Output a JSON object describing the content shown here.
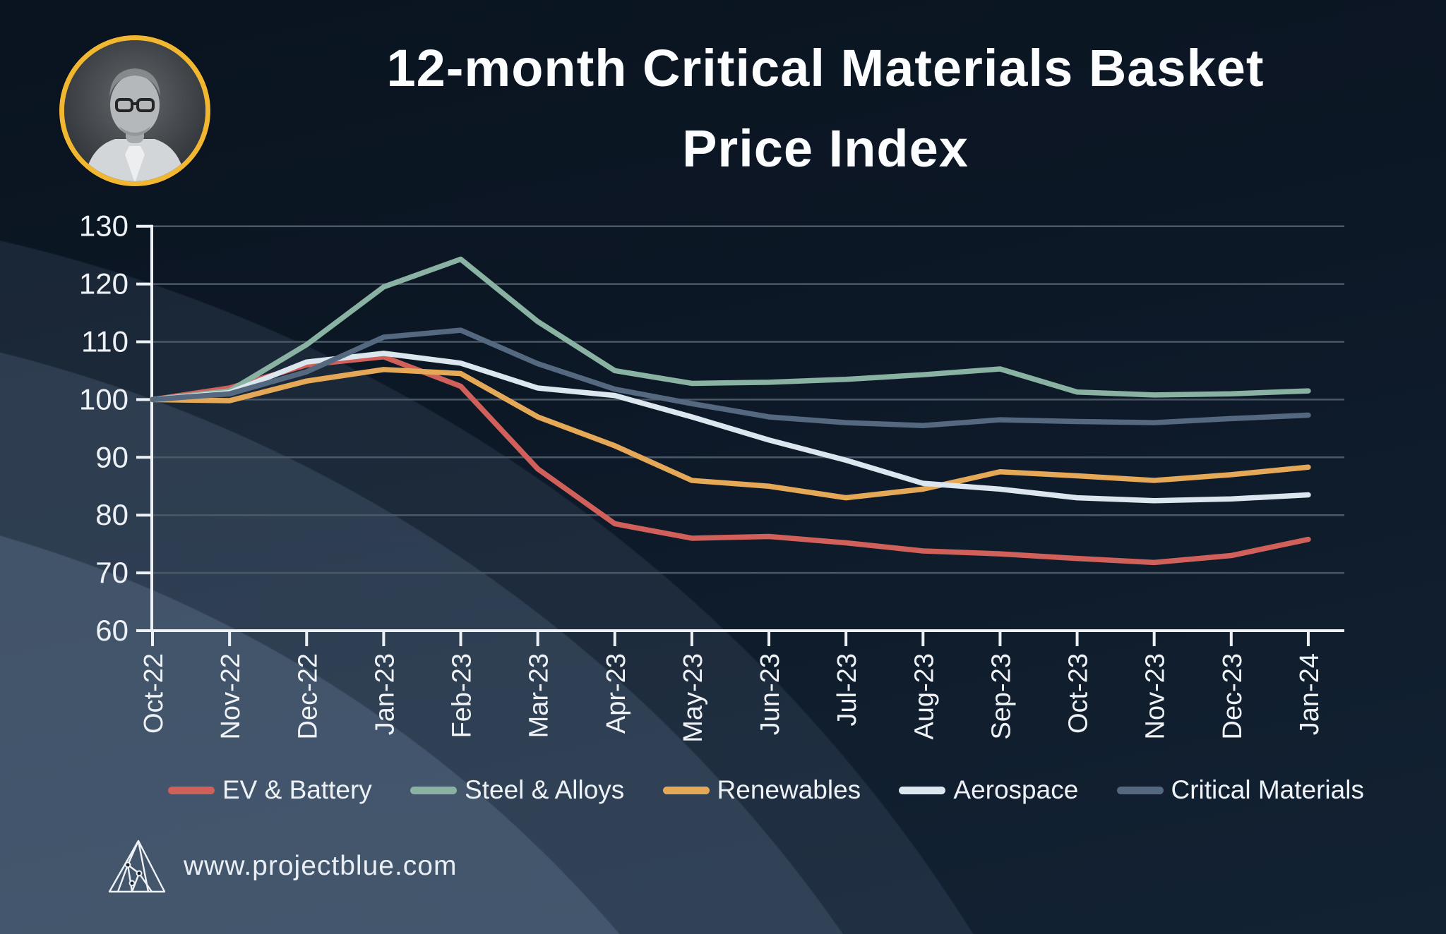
{
  "slide": {
    "title_line1": "12-month Critical Materials Basket",
    "title_line2": "Price Index",
    "website": "www.projectblue.com"
  },
  "colors": {
    "axis": "#edf1f5",
    "gridline": "#4b5866",
    "tick_label": "#eef2f6",
    "accent_gold": "#f2b731",
    "background_dark": "#0b1522",
    "swoosh_slate": "#60758f"
  },
  "chart_data": {
    "type": "line",
    "title": "12-month Critical Materials Basket Price Index",
    "xlabel": "",
    "ylabel": "",
    "ylim": [
      60,
      130
    ],
    "yticks": [
      60,
      70,
      80,
      90,
      100,
      110,
      120,
      130
    ],
    "grid": true,
    "legend_position": "bottom",
    "categories": [
      "Oct-22",
      "Nov-22",
      "Dec-22",
      "Jan-23",
      "Feb-23",
      "Mar-23",
      "Apr-23",
      "May-23",
      "Jun-23",
      "Jul-23",
      "Aug-23",
      "Sep-23",
      "Oct-23",
      "Nov-23",
      "Dec-23",
      "Jan-24"
    ],
    "series": [
      {
        "name": "EV & Battery",
        "color": "#d2605a",
        "values": [
          100,
          102,
          106,
          107.4,
          102.3,
          88,
          78.5,
          76,
          76.3,
          75.2,
          73.8,
          73.3,
          72.5,
          71.8,
          73,
          75.8
        ]
      },
      {
        "name": "Steel & Alloys",
        "color": "#89b2a3",
        "values": [
          100,
          101.5,
          109.5,
          119.5,
          124.3,
          113.5,
          105,
          102.8,
          103,
          103.5,
          104.3,
          105.3,
          101.3,
          100.8,
          101,
          101.5
        ]
      },
      {
        "name": "Renewables",
        "color": "#e4a857",
        "values": [
          100,
          99.8,
          103.2,
          105.2,
          104.5,
          97,
          92,
          86,
          85,
          83,
          84.5,
          87.5,
          86.8,
          86,
          87,
          88.3
        ]
      },
      {
        "name": "Aerospace",
        "color": "#dce6ee",
        "values": [
          100,
          101.2,
          106.5,
          108,
          106.3,
          102,
          100.7,
          97,
          93,
          89.5,
          85.5,
          84.5,
          83,
          82.5,
          82.8,
          83.5
        ]
      },
      {
        "name": "Critical Materials",
        "color": "#54687f",
        "values": [
          100,
          101,
          104.8,
          110.8,
          112,
          106.2,
          101.8,
          99.3,
          97,
          96,
          95.5,
          96.5,
          96.2,
          96,
          96.7,
          97.3
        ]
      }
    ]
  }
}
